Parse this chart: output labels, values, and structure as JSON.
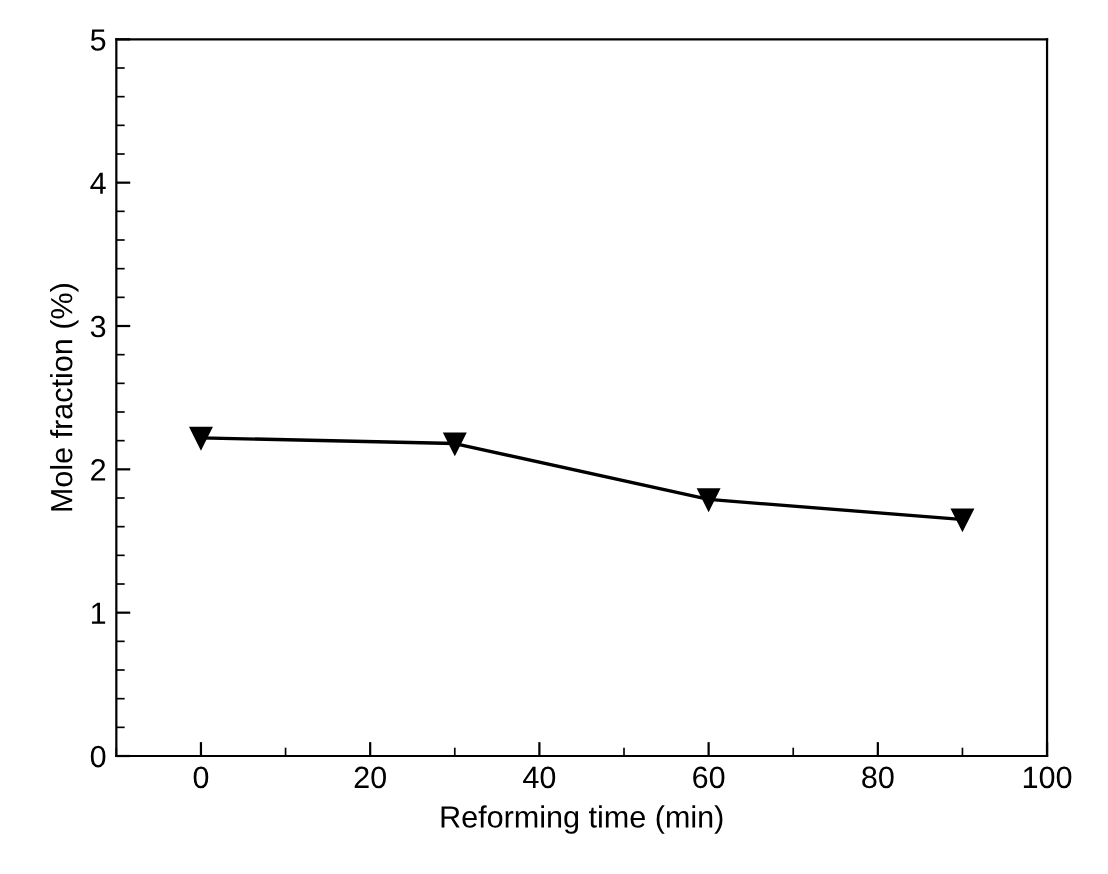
{
  "chart_data": {
    "type": "line",
    "xlabel": "Reforming time (min)",
    "ylabel": "Mole fraction (%)",
    "x": [
      0,
      30,
      60,
      90
    ],
    "series": [
      {
        "color": "#000000",
        "values": [
          2.22,
          2.18,
          1.79,
          1.65
        ]
      }
    ],
    "xlim": [
      -10,
      100
    ],
    "ylim": [
      0,
      5
    ],
    "xticks": [
      0,
      20,
      40,
      60,
      80,
      100
    ],
    "yticks": [
      0,
      1,
      2,
      3,
      4,
      5
    ],
    "marker": "triangle",
    "line_style": "solid",
    "grid": false,
    "legend": false
  }
}
